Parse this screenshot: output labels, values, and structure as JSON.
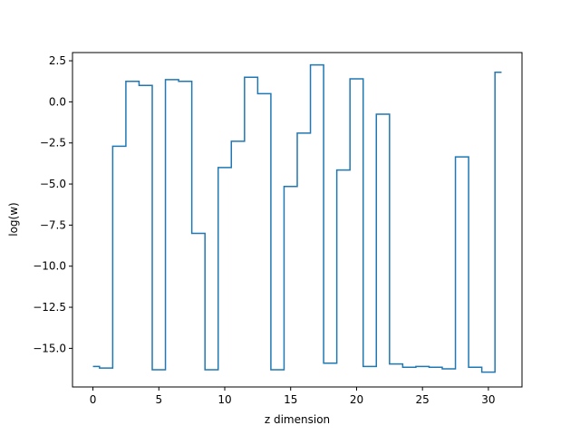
{
  "chart_data": {
    "type": "line",
    "drawstyle": "steps-mid",
    "title": "",
    "xlabel": "z dimension",
    "ylabel": "log(w)",
    "xlim": [
      -1.55,
      32.55
    ],
    "ylim": [
      -17.35,
      3.0
    ],
    "grid": false,
    "legend": "none",
    "x_ticks": [
      0,
      5,
      10,
      15,
      20,
      25,
      30
    ],
    "x_tick_labels": [
      "0",
      "5",
      "10",
      "15",
      "20",
      "25",
      "30"
    ],
    "y_ticks": [
      2.5,
      0.0,
      -2.5,
      -5.0,
      -7.5,
      -10.0,
      -12.5,
      -15.0
    ],
    "y_tick_labels": [
      "2.5",
      "0.0",
      "−2.5",
      "−5.0",
      "−7.5",
      "−10.0",
      "−12.5",
      "−15.0"
    ],
    "series": [
      {
        "color": "#1f77b4",
        "x": [
          0,
          1,
          2,
          3,
          4,
          5,
          6,
          7,
          8,
          9,
          10,
          11,
          12,
          13,
          14,
          15,
          16,
          17,
          18,
          19,
          20,
          21,
          22,
          23,
          24,
          25,
          26,
          27,
          28,
          29,
          30,
          31
        ],
        "y": [
          -16.1,
          -16.2,
          -2.7,
          1.25,
          1.0,
          -16.3,
          1.35,
          1.25,
          -8.0,
          -16.3,
          -4.0,
          -2.4,
          1.5,
          0.5,
          -16.3,
          -5.15,
          -1.9,
          2.25,
          -15.9,
          -4.15,
          1.4,
          -16.1,
          -0.75,
          -15.95,
          -16.15,
          -16.1,
          -16.15,
          -16.25,
          -3.35,
          -16.15,
          -16.45,
          1.8
        ]
      }
    ]
  }
}
